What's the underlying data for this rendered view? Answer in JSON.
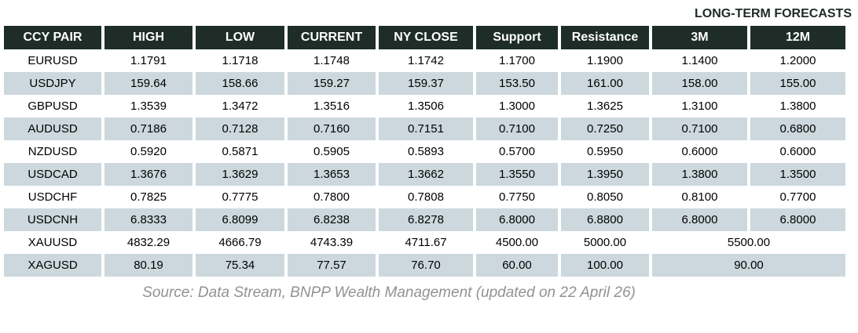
{
  "chart_data": {
    "type": "table",
    "title": "LONG-TERM FORECASTS",
    "columns": [
      "CCY PAIR",
      "HIGH",
      "LOW",
      "CURRENT",
      "NY CLOSE",
      "Support",
      "Resistance",
      "3M",
      "12M"
    ],
    "rows": [
      {
        "pair": "EURUSD",
        "values": [
          "1.1791",
          "1.1718",
          "1.1748",
          "1.1742",
          "1.1700",
          "1.1900",
          "1.1400",
          "1.2000"
        ]
      },
      {
        "pair": "USDJPY",
        "values": [
          "159.64",
          "158.66",
          "159.27",
          "159.37",
          "153.50",
          "161.00",
          "158.00",
          "155.00"
        ]
      },
      {
        "pair": "GBPUSD",
        "values": [
          "1.3539",
          "1.3472",
          "1.3516",
          "1.3506",
          "1.3000",
          "1.3625",
          "1.3100",
          "1.3800"
        ]
      },
      {
        "pair": "AUDUSD",
        "values": [
          "0.7186",
          "0.7128",
          "0.7160",
          "0.7151",
          "0.7100",
          "0.7250",
          "0.7100",
          "0.6800"
        ]
      },
      {
        "pair": "NZDUSD",
        "values": [
          "0.5920",
          "0.5871",
          "0.5905",
          "0.5893",
          "0.5700",
          "0.5950",
          "0.6000",
          "0.6000"
        ]
      },
      {
        "pair": "USDCAD",
        "values": [
          "1.3676",
          "1.3629",
          "1.3653",
          "1.3662",
          "1.3550",
          "1.3950",
          "1.3800",
          "1.3500"
        ]
      },
      {
        "pair": "USDCHF",
        "values": [
          "0.7825",
          "0.7775",
          "0.7800",
          "0.7808",
          "0.7750",
          "0.8050",
          "0.8100",
          "0.7700"
        ]
      },
      {
        "pair": "USDCNH",
        "values": [
          "6.8333",
          "6.8099",
          "6.8238",
          "6.8278",
          "6.8000",
          "6.8800",
          "6.8000",
          "6.8000"
        ]
      },
      {
        "pair": "XAUUSD",
        "values": [
          "4832.29",
          "4666.79",
          "4743.39",
          "4711.67",
          "4500.00",
          "5000.00"
        ],
        "forecast_merged": "5500.00"
      },
      {
        "pair": "XAGUSD",
        "values": [
          "80.19",
          "75.34",
          "77.57",
          "76.70",
          "60.00",
          "100.00"
        ],
        "forecast_merged": "90.00"
      }
    ],
    "source": "Source: Data Stream, BNPP Wealth Management (updated on 22 April 26)"
  },
  "colors": {
    "header_bg": "#1f2d28",
    "header_text": "#ffffff",
    "stripe_bg": "#ccd8dd",
    "title_color": "#1c2b26",
    "source_color": "#909295"
  }
}
